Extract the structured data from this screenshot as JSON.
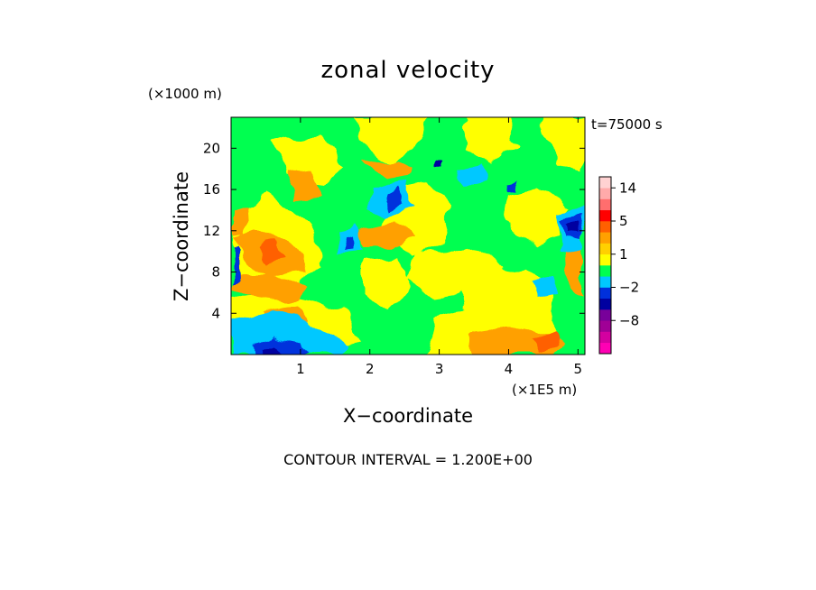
{
  "chart_data": {
    "type": "heatmap",
    "title": "zonal velocity",
    "xlabel": "X−coordinate",
    "ylabel": "Z−coordinate",
    "x_unit": "(×1E5 m)",
    "y_unit": "(×1000 m)",
    "time_label": "t=75000 s",
    "contour_label": "CONTOUR INTERVAL = 1.200E+00",
    "xlim": [
      0,
      5.1
    ],
    "ylim": [
      0,
      23
    ],
    "x_ticks": [
      1,
      2,
      3,
      4,
      5
    ],
    "x_tick_labels": [
      "1",
      "2",
      "3",
      "4",
      "5"
    ],
    "y_ticks": [
      4,
      8,
      12,
      16,
      20
    ],
    "y_tick_labels": [
      "4",
      "8",
      "12",
      "16",
      "20"
    ],
    "grid": false,
    "colorbar": {
      "levels": [
        -14,
        -12,
        -10,
        -8,
        -6,
        -4,
        -2,
        -1,
        0,
        1,
        2,
        3,
        5,
        8,
        11,
        14,
        17
      ],
      "colors": [
        "#ff00b4",
        "#d400a0",
        "#a00096",
        "#78009a",
        "#0000a0",
        "#0030dc",
        "#00c8ff",
        "#00ff50",
        "#ffff00",
        "#ffd000",
        "#ffa000",
        "#ff6000",
        "#ff0000",
        "#ff6e6e",
        "#ffaaaa",
        "#ffd2d2"
      ],
      "tick_values": [
        14,
        5,
        1,
        -2,
        -8
      ],
      "tick_labels": [
        "14",
        "5",
        "1",
        "−2",
        "−8"
      ]
    },
    "field_colors": {
      "strong_negative": "#0000a0",
      "negative": "#0030dc",
      "weak_negative": "#00c8ff",
      "near_zero": "#00ff50",
      "weak_positive": "#ffff00",
      "positive": "#ffa000",
      "strong_positive": "#ff6000"
    }
  }
}
